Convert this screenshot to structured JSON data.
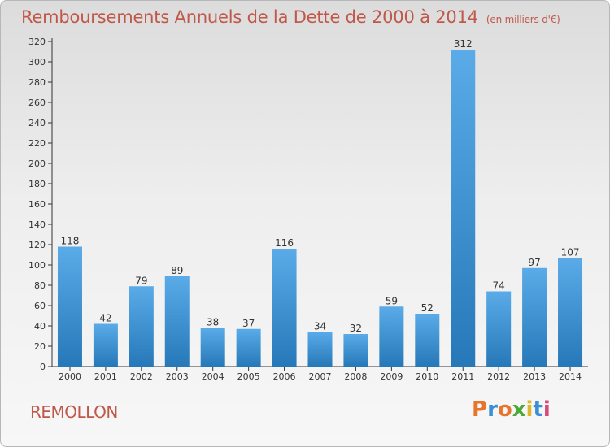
{
  "header": {
    "title": "Remboursements Annuels de la Dette de 2000 à 2014",
    "subtitle": "(en milliers d'€)"
  },
  "footer": {
    "town": "REMOLLON",
    "logo_text": "Proxiti",
    "logo_colors": [
      "#e8732a",
      "#3a8fd6",
      "#e8732a",
      "#4da83a",
      "#e0b62a",
      "#3a8fd6",
      "#d64a7a"
    ]
  },
  "colors": {
    "bar_light": "#5aabe8",
    "bar_dark": "#2678b8",
    "title": "#c0584a"
  },
  "chart_data": {
    "type": "bar",
    "categories": [
      "2000",
      "2001",
      "2002",
      "2003",
      "2004",
      "2005",
      "2006",
      "2007",
      "2008",
      "2009",
      "2010",
      "2011",
      "2012",
      "2013",
      "2014"
    ],
    "values": [
      118,
      42,
      79,
      89,
      38,
      37,
      116,
      34,
      32,
      59,
      52,
      312,
      74,
      97,
      107
    ],
    "title": "Remboursements Annuels de la Dette de 2000 à 2014",
    "ylim": [
      0,
      320
    ],
    "yticks": [
      0,
      20,
      40,
      60,
      80,
      100,
      120,
      140,
      160,
      180,
      200,
      220,
      240,
      260,
      280,
      300,
      320
    ],
    "grid": false,
    "data_labels": true
  }
}
